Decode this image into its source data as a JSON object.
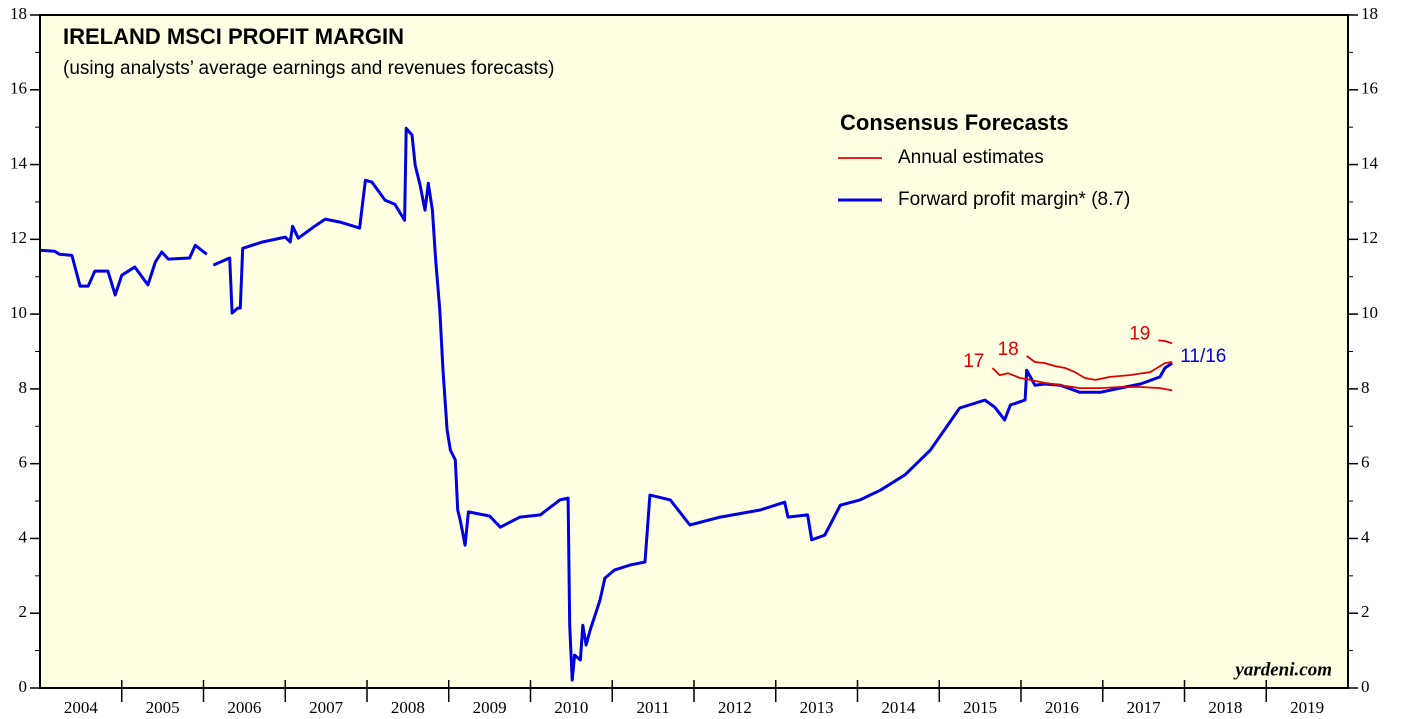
{
  "chart_data": {
    "type": "line",
    "title": "IRELAND MSCI PROFIT MARGIN",
    "subtitle": "(using analysts’ average earnings and revenues forecasts)",
    "source": "yardeni.com",
    "legend": {
      "title": "Consensus Forecasts",
      "entries": [
        {
          "label": "Annual estimates",
          "color": "#e00000"
        },
        {
          "label": "Forward profit margin* (8.7)",
          "color": "#0000e6"
        }
      ]
    },
    "xlim": [
      2004,
      2020
    ],
    "xticks": [
      {
        "value": 2004.5,
        "label": "2004"
      },
      {
        "value": 2005.5,
        "label": "2005"
      },
      {
        "value": 2006.5,
        "label": "2006"
      },
      {
        "value": 2007.5,
        "label": "2007"
      },
      {
        "value": 2008.5,
        "label": "2008"
      },
      {
        "value": 2009.5,
        "label": "2009"
      },
      {
        "value": 2010.5,
        "label": "2010"
      },
      {
        "value": 2011.5,
        "label": "2011"
      },
      {
        "value": 2012.5,
        "label": "2012"
      },
      {
        "value": 2013.5,
        "label": "2013"
      },
      {
        "value": 2014.5,
        "label": "2014"
      },
      {
        "value": 2015.5,
        "label": "2015"
      },
      {
        "value": 2016.5,
        "label": "2016"
      },
      {
        "value": 2017.5,
        "label": "2017"
      },
      {
        "value": 2018.5,
        "label": "2018"
      },
      {
        "value": 2019.5,
        "label": "2019"
      }
    ],
    "ylim": [
      0,
      18
    ],
    "yticks": [
      0,
      2,
      4,
      6,
      8,
      10,
      12,
      14,
      16,
      18
    ],
    "minor_yticks": [
      1,
      3,
      5,
      7,
      9,
      11,
      13,
      15,
      17
    ],
    "series": [
      {
        "name": "Forward profit margin* (8.7)",
        "end_label": "11/16",
        "color": "#0000e6",
        "x": [
          2004.0,
          2004.18,
          2004.24,
          2004.39,
          2004.49,
          2004.59,
          2004.67,
          2004.83,
          2004.92,
          2005.0,
          2005.16,
          2005.32,
          2005.41,
          2005.49,
          2005.57,
          2005.83,
          2005.9,
          2006.04,
          2006.08,
          2006.12,
          2006.32,
          2006.35,
          2006.42,
          2006.45,
          2006.48,
          2006.72,
          2007.0,
          2007.06,
          2007.09,
          2007.16,
          2007.36,
          2007.49,
          2007.67,
          2007.91,
          2007.98,
          2008.06,
          2008.22,
          2008.34,
          2008.46,
          2008.48,
          2008.55,
          2008.59,
          2008.65,
          2008.71,
          2008.75,
          2008.8,
          2008.84,
          2008.89,
          2008.93,
          2008.98,
          2009.02,
          2009.08,
          2009.11,
          2009.14,
          2009.2,
          2009.24,
          2009.5,
          2009.63,
          2009.87,
          2010.12,
          2010.36,
          2010.46,
          2010.48,
          2010.51,
          2010.54,
          2010.61,
          2010.64,
          2010.68,
          2010.73,
          2010.85,
          2010.91,
          2011.03,
          2011.22,
          2011.4,
          2011.46,
          2011.71,
          2011.95,
          2012.32,
          2012.81,
          2013.11,
          2013.15,
          2013.39,
          2013.44,
          2013.6,
          2013.79,
          2014.03,
          2014.28,
          2014.58,
          2014.89,
          2015.25,
          2015.56,
          2015.68,
          2015.8,
          2015.87,
          2016.05,
          2016.07,
          2016.17,
          2016.29,
          2016.48,
          2016.72,
          2016.97,
          2017.21,
          2017.46,
          2017.7,
          2017.76,
          2017.85
        ],
        "values": [
          11.71,
          11.68,
          11.6,
          11.57,
          10.75,
          10.75,
          11.15,
          11.15,
          10.51,
          11.04,
          11.26,
          10.78,
          11.39,
          11.66,
          11.47,
          11.5,
          11.84,
          11.6,
          null,
          11.31,
          11.5,
          10.03,
          10.16,
          10.16,
          11.76,
          11.93,
          12.06,
          11.93,
          12.35,
          12.03,
          12.35,
          12.54,
          12.46,
          12.3,
          13.58,
          13.53,
          13.05,
          12.94,
          12.51,
          14.97,
          14.79,
          13.98,
          13.45,
          12.78,
          13.5,
          12.78,
          11.44,
          10.11,
          8.5,
          6.9,
          6.36,
          6.1,
          4.76,
          4.49,
          3.82,
          4.71,
          4.6,
          4.3,
          4.57,
          4.63,
          5.03,
          5.08,
          1.68,
          0.21,
          0.88,
          0.75,
          1.68,
          1.15,
          1.55,
          2.35,
          2.94,
          3.16,
          3.29,
          3.37,
          5.16,
          5.03,
          4.36,
          4.57,
          4.76,
          4.97,
          4.57,
          4.63,
          3.96,
          4.09,
          4.89,
          5.03,
          5.29,
          5.7,
          6.36,
          7.49,
          7.7,
          7.51,
          7.17,
          7.57,
          7.7,
          8.5,
          8.1,
          8.13,
          8.1,
          7.91,
          7.91,
          8.02,
          8.13,
          8.32,
          8.56,
          8.69
        ]
      },
      {
        "name": "17",
        "color": "#e00000",
        "x": [
          2015.65,
          2015.74,
          2015.84,
          2015.99,
          2016.11,
          2016.29,
          2016.48,
          2016.72,
          2016.97,
          2017.21,
          2017.46,
          2017.7,
          2017.85
        ],
        "values": [
          8.56,
          8.37,
          8.42,
          8.29,
          8.24,
          8.16,
          8.1,
          8.02,
          8.02,
          8.05,
          8.05,
          8.02,
          7.96
        ]
      },
      {
        "name": "18",
        "color": "#e00000",
        "x": [
          2016.07,
          2016.17,
          2016.29,
          2016.42,
          2016.54,
          2016.66,
          2016.78,
          2016.91,
          2017.09,
          2017.33,
          2017.58,
          2017.76,
          2017.85
        ],
        "values": [
          8.88,
          8.72,
          8.69,
          8.61,
          8.56,
          8.45,
          8.29,
          8.24,
          8.32,
          8.37,
          8.45,
          8.69,
          8.72
        ]
      },
      {
        "name": "19",
        "color": "#e00000",
        "x": [
          2017.68,
          2017.76,
          2017.85
        ],
        "values": [
          9.3,
          9.28,
          9.22
        ]
      }
    ]
  }
}
